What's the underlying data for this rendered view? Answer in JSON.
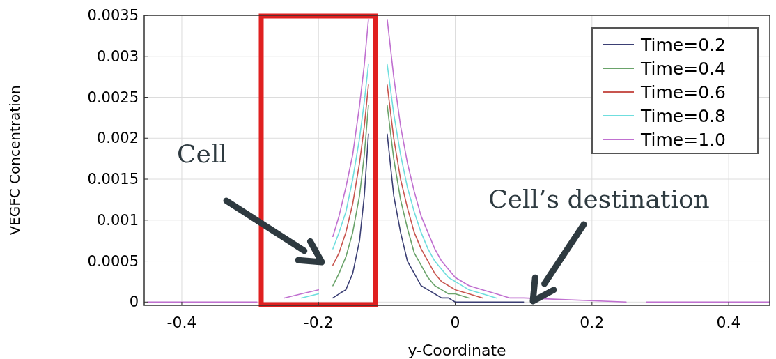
{
  "chart_data": {
    "type": "line",
    "xlabel": "y-Coordinate",
    "ylabel": "VEGFC Concentration",
    "x": [
      -0.45,
      -0.29,
      -0.27,
      -0.25,
      -0.225,
      -0.2,
      -0.19,
      -0.179,
      -0.17,
      -0.16,
      -0.15,
      -0.14,
      -0.133,
      -0.127,
      -0.115,
      -0.0995,
      -0.09,
      -0.08,
      -0.07,
      -0.06,
      -0.05,
      -0.04,
      -0.03,
      -0.02,
      -0.01,
      0,
      0.02,
      0.04,
      0.06,
      0.08,
      0.1,
      0.25,
      0.265,
      0.28,
      0.46
    ],
    "series": [
      {
        "name": "Time=0.2",
        "color": "#3b3f74",
        "values": [
          null,
          null,
          null,
          null,
          null,
          null,
          null,
          5e-05,
          0.0001,
          0.00015,
          0.00035,
          0.00075,
          0.0013,
          0.00205,
          null,
          0.00205,
          0.0013,
          0.00085,
          0.0005,
          0.00035,
          0.0002,
          0.00015,
          0.0001,
          5e-05,
          5e-05,
          0,
          0,
          0,
          0,
          0,
          0,
          null,
          null,
          null,
          null
        ]
      },
      {
        "name": "Time=0.4",
        "color": "#6aa36a",
        "values": [
          null,
          null,
          null,
          null,
          null,
          null,
          null,
          0.0002,
          0.00035,
          0.00055,
          0.00085,
          0.0013,
          0.0018,
          0.0024,
          null,
          0.0024,
          0.00175,
          0.00125,
          0.0009,
          0.0006,
          0.00045,
          0.0003,
          0.0002,
          0.00015,
          0.0001,
          0.0001,
          5e-05,
          null,
          null,
          null,
          null,
          null,
          null,
          null,
          null
        ]
      },
      {
        "name": "Time=0.6",
        "color": "#c8554f",
        "values": [
          null,
          null,
          null,
          null,
          null,
          null,
          null,
          0.00045,
          0.0006,
          0.00085,
          0.0012,
          0.0017,
          0.00215,
          0.00265,
          null,
          0.00265,
          0.002,
          0.0015,
          0.00115,
          0.00085,
          0.00065,
          0.0005,
          0.00035,
          0.00025,
          0.0002,
          0.00015,
          0.0001,
          5e-05,
          null,
          null,
          null,
          null,
          null,
          null,
          null
        ]
      },
      {
        "name": "Time=0.8",
        "color": "#6fdede",
        "values": [
          null,
          null,
          null,
          null,
          5e-05,
          0.0001,
          null,
          0.00065,
          0.00085,
          0.0011,
          0.0015,
          0.002,
          0.00245,
          0.0029,
          null,
          0.0029,
          0.0023,
          0.0018,
          0.0014,
          0.0011,
          0.00085,
          0.00065,
          0.0005,
          0.0004,
          0.0003,
          0.00025,
          0.00015,
          0.0001,
          5e-05,
          null,
          null,
          null,
          null,
          null,
          null
        ]
      },
      {
        "name": "Time=1.0",
        "color": "#c070d0",
        "values": [
          0,
          0,
          null,
          5e-05,
          0.0001,
          0.00015,
          null,
          0.0008,
          0.00105,
          0.0014,
          0.0018,
          0.0024,
          0.0029,
          0.00345,
          null,
          0.00345,
          0.00275,
          0.00215,
          0.0017,
          0.00135,
          0.00105,
          0.00085,
          0.00065,
          0.0005,
          0.0004,
          0.0003,
          0.0002,
          0.00015,
          0.0001,
          5e-05,
          5e-05,
          0,
          null,
          0,
          0
        ]
      }
    ],
    "xlim": [
      -0.455,
      0.46
    ],
    "xticks": [
      -0.4,
      -0.2,
      0,
      0.2,
      0.4
    ],
    "ylim": [
      -4e-05,
      0.0035
    ],
    "yticks": [
      0,
      0.0005,
      0.001,
      0.0015,
      0.002,
      0.0025,
      0.003,
      0.0035
    ],
    "grid": true,
    "legend": "top right",
    "marker": "none",
    "line_style": "solid",
    "annotations": [
      "Cell",
      "Cell’s destination"
    ]
  }
}
